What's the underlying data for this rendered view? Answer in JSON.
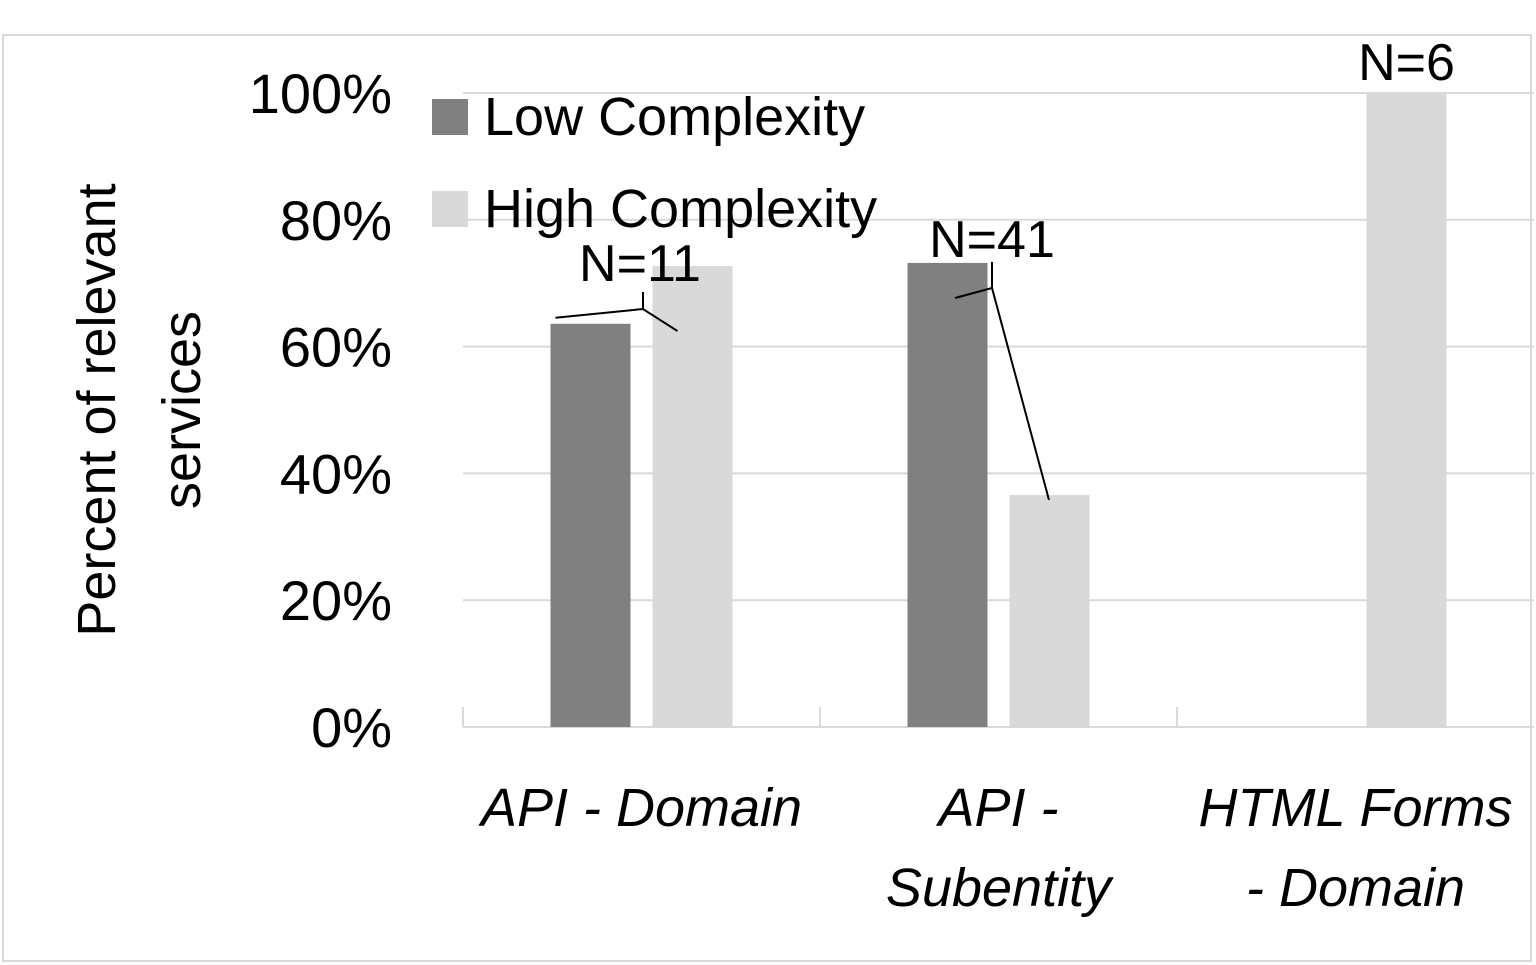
{
  "chart_data": {
    "type": "bar",
    "ylabel": [
      "Percent of relevant",
      "services"
    ],
    "xlabel": "",
    "ylim": [
      0,
      100
    ],
    "yticks": [
      "0%",
      "20%",
      "40%",
      "60%",
      "80%",
      "100%"
    ],
    "grid": true,
    "legend_position": "top-left",
    "categories": [
      [
        "API - Domain"
      ],
      [
        "API -",
        "Subentity"
      ],
      [
        "HTML Forms",
        "- Domain"
      ]
    ],
    "series": [
      {
        "name": "Low Complexity",
        "color": "#808080",
        "values": [
          63.6,
          73.2,
          0
        ]
      },
      {
        "name": "High Complexity",
        "color": "#d9d9d9",
        "values": [
          72.7,
          36.6,
          100
        ]
      }
    ],
    "annotations": [
      "N=11",
      "N=41",
      "N=6"
    ]
  }
}
